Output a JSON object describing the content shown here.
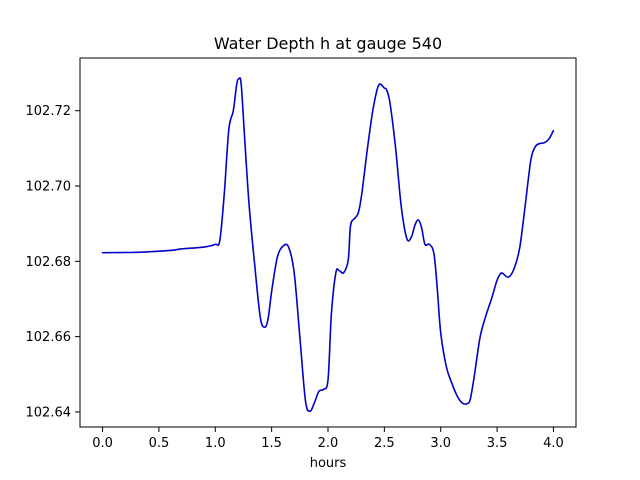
{
  "chart_data": {
    "type": "line",
    "title": "Water Depth h at gauge 540",
    "xlabel": "hours",
    "ylabel": "",
    "xlim": [
      -0.2,
      4.2
    ],
    "ylim": [
      102.636,
      102.734
    ],
    "xticks": [
      0.0,
      0.5,
      1.0,
      1.5,
      2.0,
      2.5,
      3.0,
      3.5,
      4.0
    ],
    "xtick_labels": [
      "0.0",
      "0.5",
      "1.0",
      "1.5",
      "2.0",
      "2.5",
      "3.0",
      "3.5",
      "4.0"
    ],
    "yticks": [
      102.64,
      102.66,
      102.68,
      102.7,
      102.72
    ],
    "ytick_labels": [
      "102.64",
      "102.66",
      "102.68",
      "102.70",
      "102.72"
    ],
    "grid": false,
    "series": [
      {
        "color": "#0000cc",
        "x": [
          0.0,
          0.3,
          0.6,
          0.7,
          0.9,
          1.0,
          1.04,
          1.08,
          1.12,
          1.16,
          1.19,
          1.21,
          1.23,
          1.26,
          1.3,
          1.35,
          1.4,
          1.44,
          1.47,
          1.5,
          1.55,
          1.6,
          1.65,
          1.7,
          1.75,
          1.8,
          1.84,
          1.88,
          1.92,
          1.96,
          2.0,
          2.03,
          2.07,
          2.1,
          2.14,
          2.18,
          2.2,
          2.24,
          2.27,
          2.3,
          2.35,
          2.4,
          2.45,
          2.5,
          2.52,
          2.55,
          2.6,
          2.65,
          2.7,
          2.74,
          2.77,
          2.8,
          2.83,
          2.86,
          2.9,
          2.94,
          2.97,
          3.0,
          3.05,
          3.1,
          3.15,
          3.2,
          3.25,
          3.27,
          3.3,
          3.35,
          3.4,
          3.45,
          3.5,
          3.53,
          3.55,
          3.6,
          3.65,
          3.7,
          3.75,
          3.8,
          3.84,
          3.88,
          3.92,
          3.96,
          4.0
        ],
        "y": [
          102.6823,
          102.6824,
          102.6829,
          102.6833,
          102.6838,
          102.6845,
          102.6855,
          102.698,
          102.715,
          102.72,
          102.727,
          102.7285,
          102.727,
          102.713,
          102.695,
          102.679,
          102.665,
          102.6625,
          102.665,
          102.672,
          102.681,
          102.684,
          102.6838,
          102.677,
          102.66,
          102.643,
          102.6402,
          102.6425,
          102.6455,
          102.646,
          102.6485,
          102.666,
          102.677,
          102.6775,
          102.677,
          102.6805,
          102.6895,
          102.6915,
          102.693,
          102.698,
          102.71,
          102.7205,
          102.7268,
          102.726,
          102.7255,
          102.722,
          102.71,
          102.6945,
          102.686,
          102.6865,
          102.6895,
          102.691,
          102.689,
          102.6845,
          102.6845,
          102.682,
          102.6725,
          102.661,
          102.652,
          102.6475,
          102.644,
          102.6422,
          102.6425,
          102.6445,
          102.65,
          102.66,
          102.6655,
          102.67,
          102.675,
          102.6767,
          102.6768,
          102.6758,
          102.678,
          102.6835,
          102.695,
          102.707,
          102.7105,
          102.7113,
          102.7115,
          102.7125,
          102.7147
        ]
      }
    ]
  }
}
